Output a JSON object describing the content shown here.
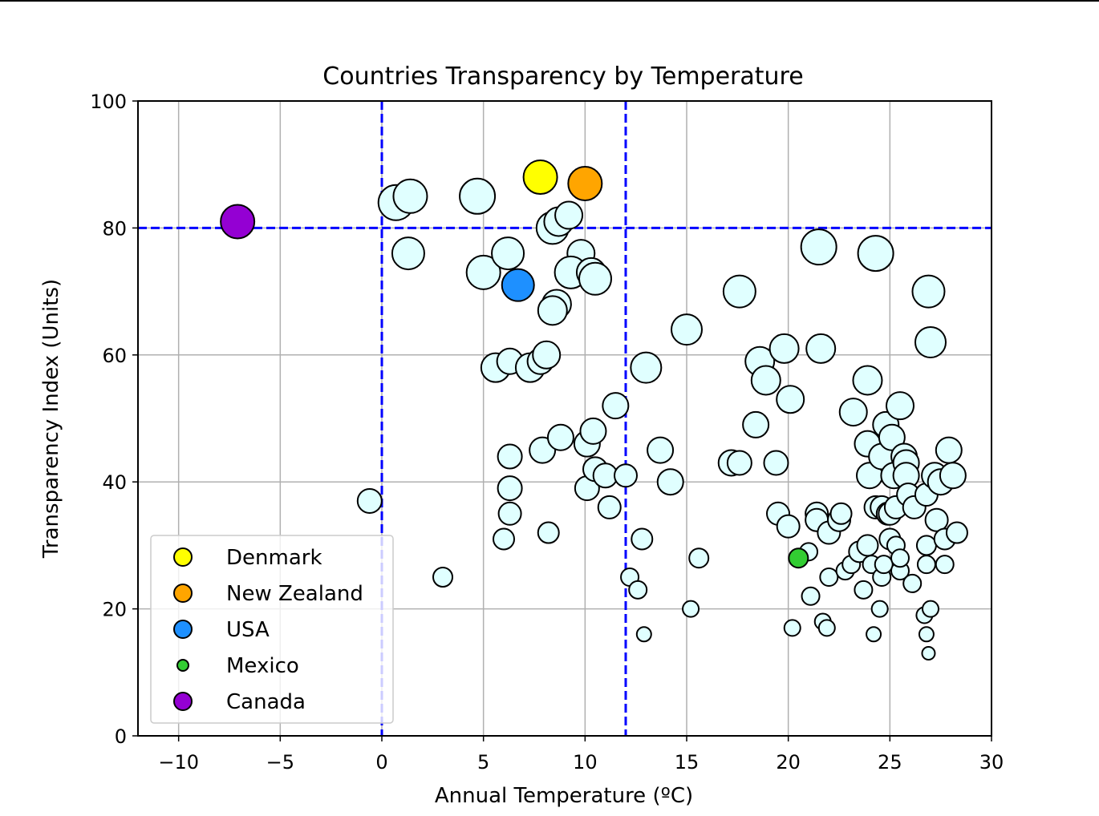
{
  "chart_data": {
    "type": "scatter",
    "title": "Countries Transparency by Temperature",
    "xlabel": "Annual Temperature (ºC)",
    "ylabel": "Transparency Index (Units)",
    "xlim": [
      -12,
      30
    ],
    "ylim": [
      0,
      100
    ],
    "xticks": [
      -10,
      -5,
      0,
      5,
      10,
      15,
      20,
      25,
      30
    ],
    "xtick_labels": [
      "−10",
      "−5",
      "0",
      "5",
      "10",
      "15",
      "20",
      "25",
      "30"
    ],
    "yticks": [
      0,
      20,
      40,
      60,
      80,
      100
    ],
    "ytick_labels": [
      "0",
      "20",
      "40",
      "60",
      "80",
      "100"
    ],
    "grid": true,
    "reference_lines": {
      "vertical": [
        0,
        12
      ],
      "horizontal": [
        80
      ],
      "color": "#0000ff",
      "style": "dashed"
    },
    "legend_position": "lower-left",
    "highlighted": [
      {
        "name": "Denmark",
        "x": 7.8,
        "y": 88,
        "size": 21,
        "color": "#ffff00"
      },
      {
        "name": "New Zealand",
        "x": 10,
        "y": 87,
        "size": 21,
        "color": "#ffa500"
      },
      {
        "name": "USA",
        "x": 6.7,
        "y": 71,
        "size": 20,
        "color": "#1e90ff"
      },
      {
        "name": "Mexico",
        "x": 20.5,
        "y": 28,
        "size": 12,
        "color": "#32cd32"
      },
      {
        "name": "Canada",
        "x": -7.1,
        "y": 81,
        "size": 21,
        "color": "#9400d3"
      }
    ],
    "other_color": "#e0ffff",
    "other": [
      [
        0.7,
        84,
        22
      ],
      [
        1.4,
        85,
        21
      ],
      [
        4.7,
        85,
        22
      ],
      [
        1.3,
        76,
        20
      ],
      [
        5,
        73,
        21
      ],
      [
        6.2,
        76,
        20
      ],
      [
        8.4,
        80,
        20
      ],
      [
        8.7,
        81,
        18
      ],
      [
        9.2,
        82,
        17
      ],
      [
        9.8,
        76,
        17
      ],
      [
        9.3,
        73,
        20
      ],
      [
        10.3,
        73,
        18
      ],
      [
        10.5,
        72,
        20
      ],
      [
        8.6,
        68,
        18
      ],
      [
        8.4,
        67,
        18
      ],
      [
        5.6,
        58,
        18
      ],
      [
        6.3,
        59,
        16
      ],
      [
        7.3,
        58,
        18
      ],
      [
        7.8,
        59,
        16
      ],
      [
        8.1,
        60,
        17
      ],
      [
        -0.6,
        37,
        15
      ],
      [
        3,
        25,
        12
      ],
      [
        6,
        31,
        13
      ],
      [
        6.3,
        35,
        14
      ],
      [
        6.3,
        39,
        15
      ],
      [
        6.3,
        44,
        15
      ],
      [
        7.9,
        45,
        16
      ],
      [
        8.8,
        47,
        16
      ],
      [
        8.2,
        32,
        13
      ],
      [
        10.1,
        39,
        15
      ],
      [
        10.1,
        46,
        16
      ],
      [
        10.4,
        48,
        16
      ],
      [
        10.5,
        42,
        15
      ],
      [
        11,
        41,
        15
      ],
      [
        11.2,
        36,
        14
      ],
      [
        11.5,
        52,
        16
      ],
      [
        12,
        41,
        14
      ],
      [
        12.2,
        25,
        11
      ],
      [
        12.6,
        23,
        11
      ],
      [
        12.8,
        31,
        13
      ],
      [
        12.9,
        16,
        9
      ],
      [
        13,
        58,
        19
      ],
      [
        13.7,
        45,
        16
      ],
      [
        14.2,
        40,
        16
      ],
      [
        15,
        64,
        19
      ],
      [
        15.2,
        20,
        10
      ],
      [
        15.6,
        28,
        12
      ],
      [
        17.2,
        43,
        16
      ],
      [
        17.6,
        43,
        15
      ],
      [
        17.6,
        70,
        20
      ],
      [
        18.4,
        49,
        16
      ],
      [
        18.6,
        59,
        18
      ],
      [
        18.9,
        56,
        18
      ],
      [
        19.4,
        43,
        15
      ],
      [
        19.5,
        35,
        14
      ],
      [
        19.8,
        61,
        18
      ],
      [
        20,
        33,
        14
      ],
      [
        20.1,
        53,
        17
      ],
      [
        20.2,
        17,
        10
      ],
      [
        21,
        29,
        11
      ],
      [
        21.1,
        22,
        11
      ],
      [
        21.5,
        77,
        22
      ],
      [
        21.4,
        35,
        14
      ],
      [
        21.4,
        34,
        14
      ],
      [
        21.6,
        61,
        18
      ],
      [
        21.7,
        18,
        10
      ],
      [
        21.9,
        17,
        10
      ],
      [
        22,
        25,
        11
      ],
      [
        22,
        32,
        14
      ],
      [
        22.5,
        34,
        14
      ],
      [
        22.6,
        35,
        13
      ],
      [
        22.8,
        26,
        11
      ],
      [
        23.1,
        27,
        11
      ],
      [
        23.2,
        51,
        17
      ],
      [
        23.5,
        29,
        13
      ],
      [
        23.7,
        23,
        11
      ],
      [
        23.9,
        30,
        13
      ],
      [
        23.9,
        56,
        18
      ],
      [
        23.9,
        46,
        16
      ],
      [
        24,
        41,
        16
      ],
      [
        24.1,
        27,
        11
      ],
      [
        24.2,
        16,
        9
      ],
      [
        24.3,
        76,
        22
      ],
      [
        24.3,
        36,
        14
      ],
      [
        24.5,
        20,
        10
      ],
      [
        24.6,
        44,
        16
      ],
      [
        24.6,
        36,
        14
      ],
      [
        24.6,
        25,
        11
      ],
      [
        24.7,
        27,
        11
      ],
      [
        24.8,
        49,
        16
      ],
      [
        24.9,
        35,
        14
      ],
      [
        25,
        35,
        14
      ],
      [
        25,
        31,
        13
      ],
      [
        25.1,
        47,
        16
      ],
      [
        25.2,
        41,
        16
      ],
      [
        25.3,
        30,
        11
      ],
      [
        25.3,
        36,
        14
      ],
      [
        25.5,
        26,
        11
      ],
      [
        25.5,
        52,
        17
      ],
      [
        25.5,
        28,
        11
      ],
      [
        25.7,
        44,
        16
      ],
      [
        25.8,
        43,
        16
      ],
      [
        25.8,
        41,
        16
      ],
      [
        25.9,
        38,
        14
      ],
      [
        26.1,
        24,
        11
      ],
      [
        26.2,
        36,
        14
      ],
      [
        26.7,
        19,
        10
      ],
      [
        26.8,
        27,
        11
      ],
      [
        26.8,
        30,
        12
      ],
      [
        26.8,
        16,
        9
      ],
      [
        26.8,
        38,
        14
      ],
      [
        26.9,
        70,
        20
      ],
      [
        26.9,
        13,
        8
      ],
      [
        27,
        20,
        10
      ],
      [
        27,
        62,
        19
      ],
      [
        27.2,
        41,
        16
      ],
      [
        27.3,
        34,
        14
      ],
      [
        27.5,
        40,
        16
      ],
      [
        27.7,
        31,
        13
      ],
      [
        27.7,
        27,
        11
      ],
      [
        27.9,
        45,
        16
      ],
      [
        28.1,
        41,
        16
      ],
      [
        28.3,
        32,
        13
      ]
    ]
  }
}
